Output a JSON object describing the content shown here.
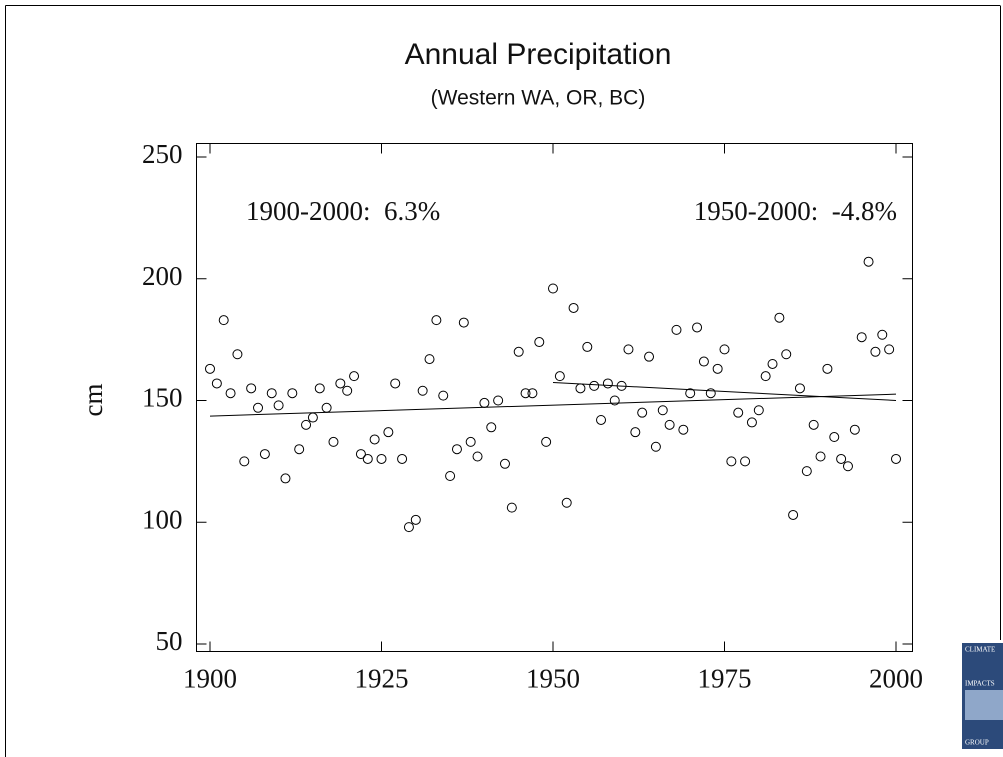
{
  "chart_data": {
    "type": "scatter",
    "title": "Annual Precipitation",
    "subtitle": "(Western WA, OR, BC)",
    "y_label": "cm",
    "xlim": [
      1900,
      2000
    ],
    "ylim": [
      50,
      250
    ],
    "xticks": [
      1900,
      1925,
      1950,
      1975,
      2000
    ],
    "yticks": [
      50,
      100,
      150,
      200,
      250
    ],
    "color": "#000000",
    "series": [
      {
        "x": [
          1900,
          1901,
          1902,
          1903,
          1904,
          1905,
          1906,
          1907,
          1908,
          1909,
          1910,
          1911,
          1912,
          1913,
          1914,
          1915,
          1916,
          1917,
          1918,
          1919,
          1920,
          1921,
          1922,
          1923,
          1924,
          1925,
          1926,
          1927,
          1928,
          1929,
          1930,
          1931,
          1932,
          1933,
          1934,
          1935,
          1936,
          1937,
          1938,
          1939,
          1940,
          1941,
          1942,
          1943,
          1944,
          1945,
          1946,
          1947,
          1948,
          1949,
          1950,
          1951,
          1952,
          1953,
          1954,
          1955,
          1956,
          1957,
          1958,
          1959,
          1960,
          1961,
          1962,
          1963,
          1964,
          1965,
          1966,
          1967,
          1968,
          1969,
          1970,
          1971,
          1972,
          1973,
          1974,
          1975,
          1976,
          1977,
          1978,
          1979,
          1980,
          1981,
          1982,
          1983,
          1984,
          1985,
          1986,
          1987,
          1988,
          1989,
          1990,
          1991,
          1992,
          1993,
          1994,
          1995,
          1996,
          1997,
          1998,
          1999,
          2000
        ],
        "values": [
          163,
          157,
          183,
          153,
          169,
          125,
          155,
          147,
          128,
          153,
          148,
          118,
          153,
          130,
          140,
          143,
          155,
          147,
          133,
          157,
          154,
          160,
          128,
          126,
          134,
          126,
          137,
          157,
          126,
          98,
          101,
          154,
          167,
          183,
          152,
          119,
          130,
          182,
          133,
          127,
          149,
          139,
          150,
          124,
          106,
          170,
          153,
          153,
          174,
          133,
          196,
          160,
          108,
          188,
          155,
          172,
          156,
          142,
          157,
          150,
          156,
          171,
          137,
          145,
          168,
          131,
          146,
          140,
          179,
          138,
          153,
          180,
          166,
          153,
          163,
          171,
          125,
          145,
          125,
          141,
          146,
          160,
          165,
          184,
          169,
          103,
          155,
          121,
          140,
          127,
          163,
          135,
          126,
          123,
          138,
          176,
          207,
          170,
          177,
          171,
          126
        ]
      }
    ],
    "trend_lines": [
      {
        "label": "1900-2000:  6.3%",
        "x": [
          1900,
          2000
        ],
        "values": [
          143.6,
          152.6
        ]
      },
      {
        "label": "1950-2000:  -4.8%",
        "x": [
          1950,
          2000
        ],
        "values": [
          157.4,
          150
        ]
      }
    ]
  },
  "logo": {
    "lines": [
      "CLIMATE",
      "IMPACTS",
      "GROUP"
    ]
  }
}
